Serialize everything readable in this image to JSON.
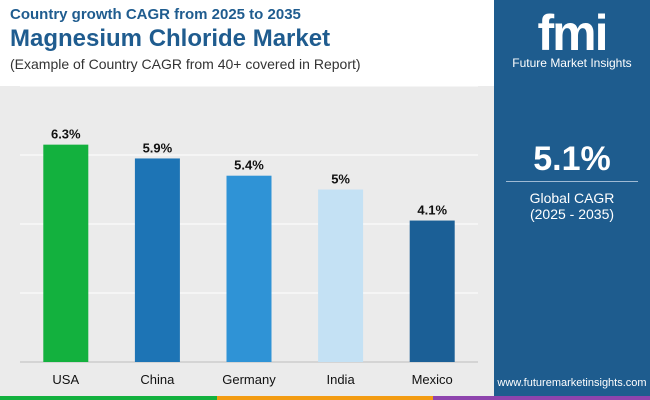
{
  "header": {
    "subtitle": "Country growth CAGR from 2025 to 2035",
    "title": "Magnesium Chloride Market",
    "note": "(Example of Country CAGR from 40+ covered in Report)"
  },
  "sidebar": {
    "logo_text": "Future Market Insights",
    "kpi_value": "5.1%",
    "kpi_label": "Global CAGR",
    "kpi_range": "(2025 - 2035)",
    "url": "www.futuremarketinsights.com"
  },
  "chart_data": {
    "type": "bar",
    "categories": [
      "USA",
      "China",
      "Germany",
      "India",
      "Mexico"
    ],
    "values": [
      6.3,
      5.9,
      5.4,
      5.0,
      4.1
    ],
    "value_labels": [
      "6.3%",
      "5.9%",
      "5.4%",
      "5%",
      "4.1%"
    ],
    "colors": [
      "#13b13e",
      "#1d74b5",
      "#2f93d6",
      "#c4e1f4",
      "#1b5f96"
    ],
    "ylim": [
      0,
      8
    ],
    "grid": true,
    "legend": "none",
    "title": "",
    "xlabel": "",
    "ylabel": ""
  },
  "colors": {
    "brand": "#1f5c8f",
    "chart_bg": "#ebebeb",
    "stripe": [
      "#13b13e",
      "#f39c12",
      "#8e44ad"
    ]
  },
  "icons": [
    "fmi-logo-icon"
  ]
}
